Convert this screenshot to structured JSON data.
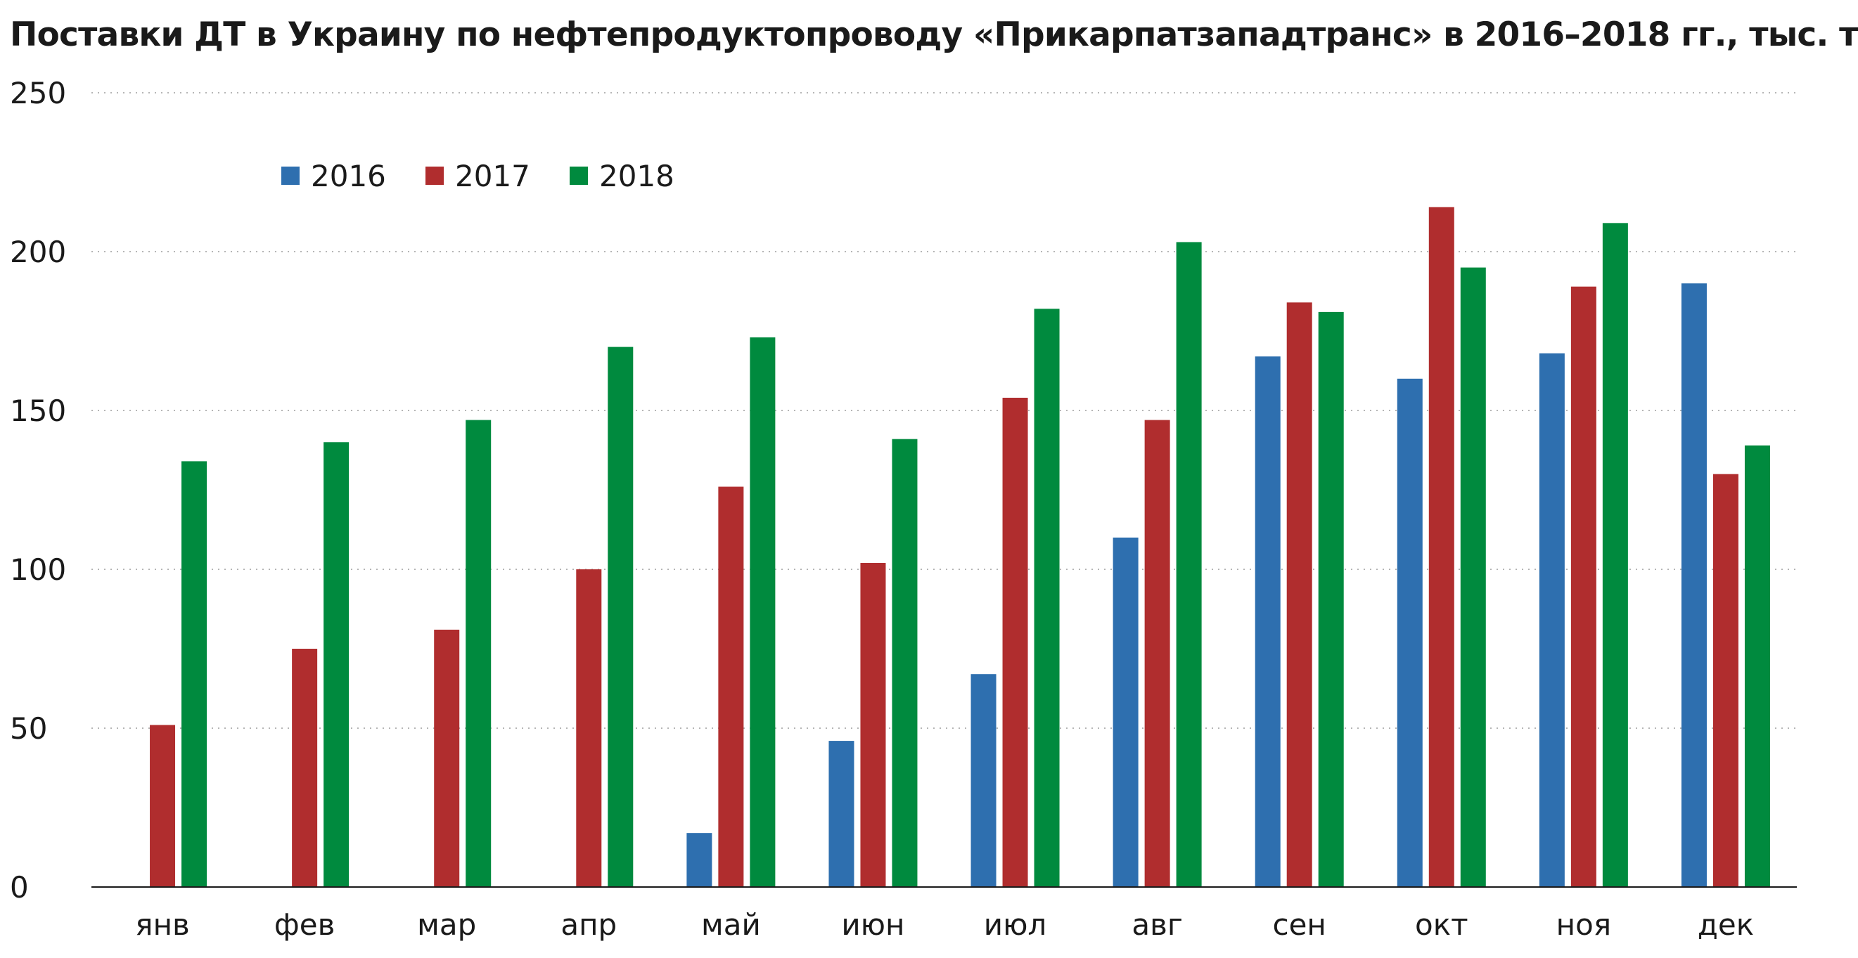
{
  "chart_data": {
    "type": "bar",
    "title": "Поставки ДТ в Украину по нефтепродуктопроводу «Прикарпатзападтранс» в 2016–2018 гг., тыс. т",
    "categories": [
      "янв",
      "фев",
      "мар",
      "апр",
      "май",
      "июн",
      "июл",
      "авг",
      "сен",
      "окт",
      "ноя",
      "дек"
    ],
    "series": [
      {
        "name": "2016",
        "color": "#2e6faf",
        "values": [
          0,
          0,
          0,
          0,
          17,
          46,
          67,
          110,
          167,
          160,
          168,
          190
        ]
      },
      {
        "name": "2017",
        "color": "#b02d2e",
        "values": [
          51,
          75,
          81,
          100,
          126,
          102,
          154,
          147,
          184,
          214,
          189,
          130
        ]
      },
      {
        "name": "2018",
        "color": "#008a3e",
        "values": [
          134,
          140,
          147,
          170,
          173,
          141,
          182,
          203,
          181,
          195,
          209,
          139
        ]
      }
    ],
    "ylim": [
      0,
      250
    ],
    "yticks": [
      0,
      50,
      100,
      150,
      200,
      250
    ],
    "grid": true,
    "legend": "top-left"
  }
}
